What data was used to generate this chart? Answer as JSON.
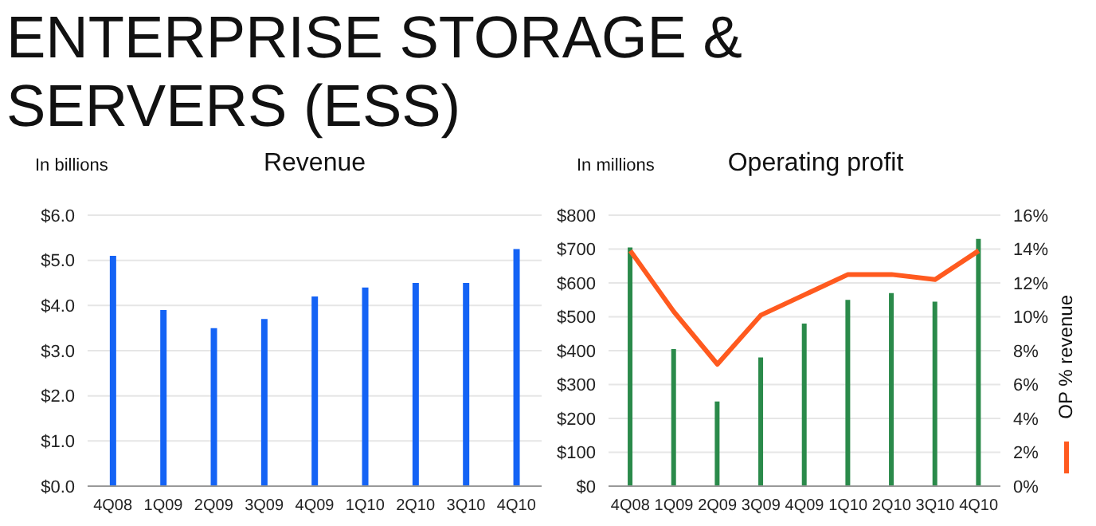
{
  "chart_data": [
    {
      "type": "bar",
      "title": "ENTERPRISE STORAGE & SERVERS (ESS)",
      "subtitle": "Revenue",
      "ylabel": "In billions",
      "categories": [
        "4Q08",
        "1Q09",
        "2Q09",
        "3Q09",
        "4Q09",
        "1Q10",
        "2Q10",
        "3Q10",
        "4Q10"
      ],
      "series": [
        {
          "color": "#1463f5",
          "values": [
            5.1,
            3.9,
            3.5,
            3.7,
            4.2,
            4.4,
            4.5,
            4.5,
            5.25
          ]
        }
      ],
      "ylim": [
        0,
        6
      ],
      "yticks": [
        {
          "value": 0,
          "label": "$0.0"
        },
        {
          "value": 1,
          "label": "$1.0"
        },
        {
          "value": 2,
          "label": "$2.0"
        },
        {
          "value": 3,
          "label": "$3.0"
        },
        {
          "value": 4,
          "label": "$4.0"
        },
        {
          "value": 5,
          "label": "$5.0"
        },
        {
          "value": 6,
          "label": "$6.0"
        }
      ],
      "grid": "y"
    },
    {
      "type": "bar",
      "title": "Operating profit",
      "ylabel": "In millions",
      "categories": [
        "4Q08",
        "1Q09",
        "2Q09",
        "3Q09",
        "4Q09",
        "1Q10",
        "2Q10",
        "3Q10",
        "4Q10"
      ],
      "series": [
        {
          "color": "#2a8a4a",
          "values": [
            705,
            405,
            250,
            380,
            480,
            550,
            570,
            545,
            730
          ]
        },
        {
          "type": "line",
          "axis": "y2",
          "name": "OP % revenue",
          "color": "#ff5a1f",
          "values": [
            13.9,
            10.3,
            7.2,
            10.1,
            11.3,
            12.5,
            12.5,
            12.2,
            13.9
          ]
        }
      ],
      "ylim": [
        0,
        800
      ],
      "yticks": [
        {
          "value": 0,
          "label": "$0"
        },
        {
          "value": 100,
          "label": "$100"
        },
        {
          "value": 200,
          "label": "$200"
        },
        {
          "value": 300,
          "label": "$300"
        },
        {
          "value": 400,
          "label": "$400"
        },
        {
          "value": 500,
          "label": "$500"
        },
        {
          "value": 600,
          "label": "$600"
        },
        {
          "value": 700,
          "label": "$700"
        },
        {
          "value": 800,
          "label": "$800"
        }
      ],
      "y2lim": [
        0,
        16
      ],
      "y2ticks": [
        {
          "value": 0,
          "label": "0%"
        },
        {
          "value": 2,
          "label": "2%"
        },
        {
          "value": 4,
          "label": "4%"
        },
        {
          "value": 6,
          "label": "6%"
        },
        {
          "value": 8,
          "label": "8%"
        },
        {
          "value": 10,
          "label": "10%"
        },
        {
          "value": 12,
          "label": "12%"
        },
        {
          "value": 14,
          "label": "14%"
        },
        {
          "value": 16,
          "label": "16%"
        }
      ],
      "grid": "y",
      "marker": "none",
      "legend": "right"
    }
  ]
}
